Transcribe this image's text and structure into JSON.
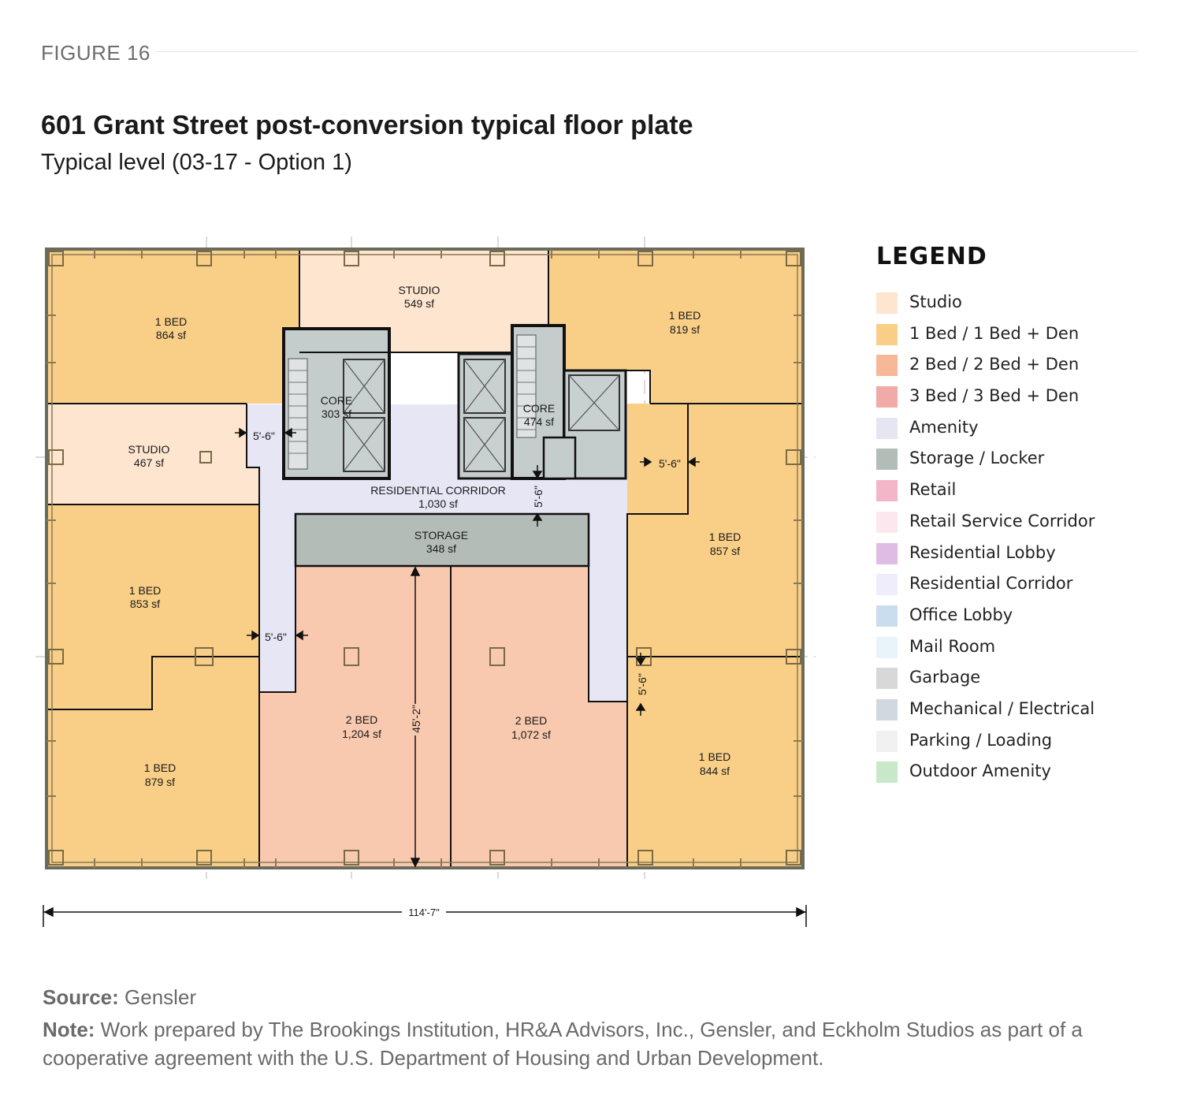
{
  "figure_label": "FIGURE 16",
  "title": "601 Grant Street post-conversion typical floor plate",
  "subtitle": "Typical level (03-17 - Option 1)",
  "colors": {
    "studio": "#fde5cf",
    "one_bed": "#f9cf88",
    "two_bed": "#f8c9ae",
    "amenity": "#e6e6f5",
    "storage": "#b4bcb8",
    "core": "#c5cccc",
    "wall": "#111111"
  },
  "rooms": [
    {
      "type": "1 BED",
      "area": "864 sf"
    },
    {
      "type": "STUDIO",
      "area": "549 sf"
    },
    {
      "type": "1 BED",
      "area": "819 sf"
    },
    {
      "type": "STUDIO",
      "area": "467 sf"
    },
    {
      "type": "CORE",
      "area": "303 sf"
    },
    {
      "type": "CORE",
      "area": "474 sf"
    },
    {
      "type": "RESIDENTIAL CORRIDOR",
      "area": "1,030 sf"
    },
    {
      "type": "STORAGE",
      "area": "348 sf"
    },
    {
      "type": "1 BED",
      "area": "857 sf"
    },
    {
      "type": "1 BED",
      "area": "853 sf"
    },
    {
      "type": "2 BED",
      "area": "1,204 sf"
    },
    {
      "type": "2 BED",
      "area": "1,072 sf"
    },
    {
      "type": "1 BED",
      "area": "879 sf"
    },
    {
      "type": "1 BED",
      "area": "844 sf"
    }
  ],
  "dimensions": {
    "corridor_width": "5'-6\"",
    "unit_depth": "45'-2\"",
    "overall_width": "114'-7\""
  },
  "legend": {
    "title": "LEGEND",
    "items": [
      {
        "label": "Studio",
        "color": "#fde5cf"
      },
      {
        "label": "1 Bed / 1 Bed + Den",
        "color": "#f9cf88"
      },
      {
        "label": "2 Bed / 2 Bed + Den",
        "color": "#f6b896"
      },
      {
        "label": "3 Bed / 3 Bed + Den",
        "color": "#f2aaa8"
      },
      {
        "label": "Amenity",
        "color": "#e6e6f3"
      },
      {
        "label": "Storage / Locker",
        "color": "#b3bdb8"
      },
      {
        "label": "Retail",
        "color": "#f2b6c8"
      },
      {
        "label": "Retail Service Corridor",
        "color": "#fde7ee"
      },
      {
        "label": "Residential Lobby",
        "color": "#dfbde3"
      },
      {
        "label": "Residential Corridor",
        "color": "#efedfb"
      },
      {
        "label": "Office Lobby",
        "color": "#c9ddef"
      },
      {
        "label": "Mail Room",
        "color": "#e8f4fa"
      },
      {
        "label": "Garbage",
        "color": "#d8d8d8"
      },
      {
        "label": "Mechanical / Electrical",
        "color": "#d1d8e0"
      },
      {
        "label": "Parking / Loading",
        "color": "#f1f1f1"
      },
      {
        "label": "Outdoor Amenity",
        "color": "#c9e8c9"
      }
    ]
  },
  "source_label": "Source:",
  "source_text": " Gensler",
  "note_label": "Note:",
  "note_text": " Work prepared by The Brookings Institution, HR&A Advisors, Inc., Gensler, and Eckholm Studios as part of a cooperative agreement with the U.S. Department of Housing and Urban Development."
}
